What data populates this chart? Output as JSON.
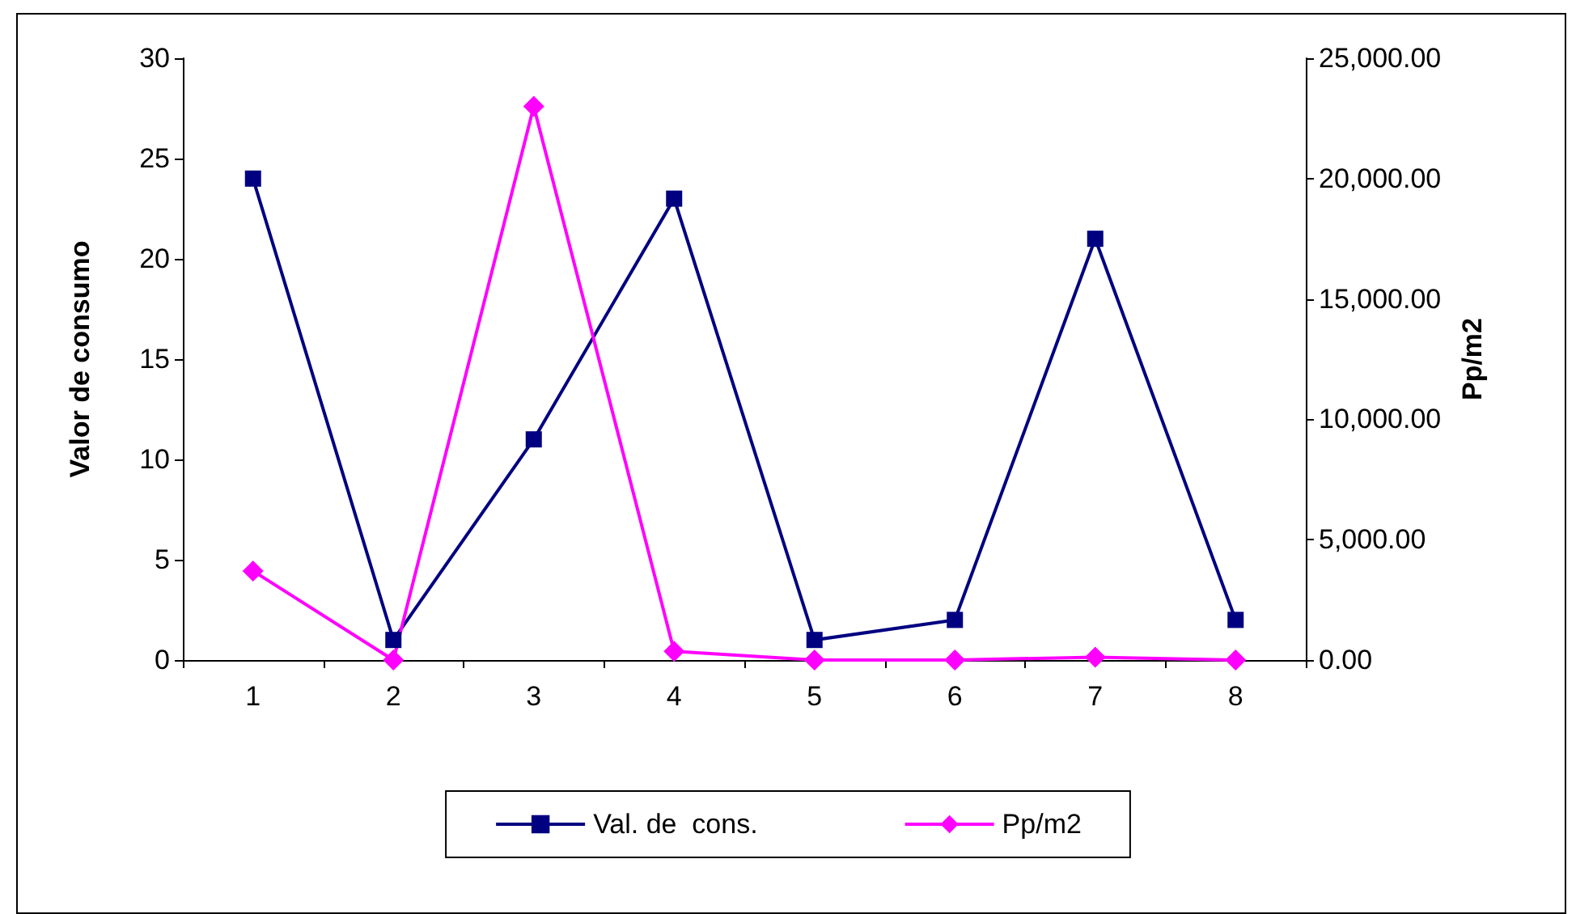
{
  "chart_data": {
    "type": "line",
    "ylabel": "Valor de consumo",
    "y2label": "Pp/m2",
    "categories": [
      "1",
      "2",
      "3",
      "4",
      "5",
      "6",
      "7",
      "8"
    ],
    "series": [
      {
        "name": "Val. de  cons.",
        "color": "#000080",
        "marker": "square",
        "values": [
          24,
          1,
          11,
          23,
          1,
          2,
          21,
          2
        ]
      },
      {
        "name": "Pp/m2",
        "color": "#ff00ff",
        "marker": "diamond",
        "axis": "y2",
        "values": [
          3700,
          0,
          23000,
          360,
          0,
          0,
          120,
          0
        ]
      }
    ],
    "ylim": [
      0,
      30
    ],
    "yticks": [
      0,
      5,
      10,
      15,
      20,
      25,
      30
    ],
    "y2lim": [
      0,
      25000
    ],
    "y2ticks": [
      {
        "value": 0,
        "label": "0.00"
      },
      {
        "value": 5000,
        "label": "5,000.00"
      },
      {
        "value": 10000,
        "label": "10,000.00"
      },
      {
        "value": 15000,
        "label": "15,000.00"
      },
      {
        "value": 20000,
        "label": "20,000.00"
      },
      {
        "value": 25000,
        "label": "25,000.00"
      }
    ],
    "grid": false,
    "legend": "bottom",
    "line_style": "solid"
  }
}
